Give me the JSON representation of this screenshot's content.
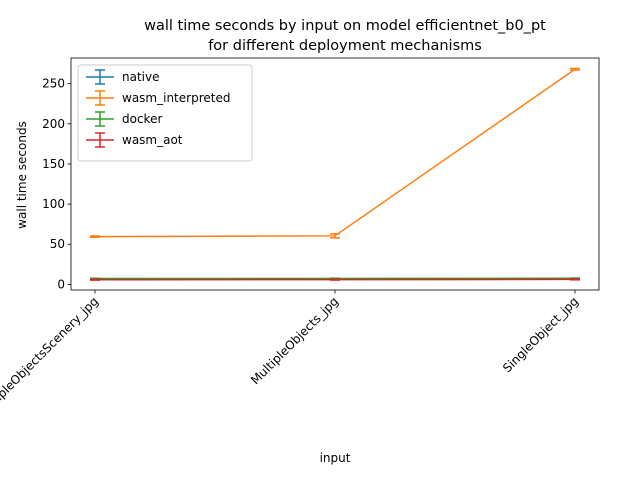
{
  "chart_data": {
    "type": "line",
    "title": [
      "wall time seconds by input on model efficientnet_b0_pt",
      "for different deployment mechanisms"
    ],
    "xlabel": "input",
    "ylabel": "wall time seconds",
    "categories": [
      "MultipleObjectsScenery_jpg",
      "MultipleObjects_jpg",
      "SingleObject_jpg"
    ],
    "yticks": [
      0,
      50,
      100,
      150,
      200,
      250
    ],
    "ylim": [
      -7,
      282
    ],
    "legend_position": "top-left",
    "grid": false,
    "error_bars": true,
    "series": [
      {
        "name": "native",
        "color": "#1f77b4",
        "values": [
          6.9,
          7.0,
          7.2
        ],
        "errors": [
          0.3,
          0.3,
          0.3
        ]
      },
      {
        "name": "wasm_interpreted",
        "color": "#ff7f0e",
        "values": [
          59.5,
          60.5,
          268.0
        ],
        "errors": [
          0.8,
          2.5,
          1.0
        ]
      },
      {
        "name": "docker",
        "color": "#2ca02c",
        "values": [
          7.3,
          7.4,
          7.6
        ],
        "errors": [
          0.3,
          0.3,
          0.3
        ]
      },
      {
        "name": "wasm_aot",
        "color": "#d62728",
        "values": [
          5.8,
          5.9,
          6.2
        ],
        "errors": [
          0.5,
          0.5,
          0.5
        ]
      }
    ]
  }
}
